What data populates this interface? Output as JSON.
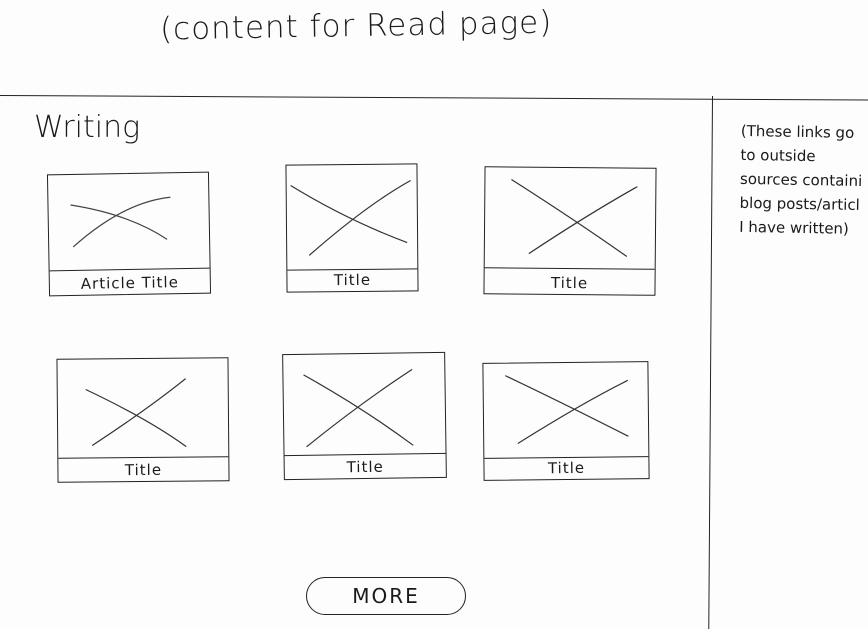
{
  "header": {
    "note": "(content for Read page)"
  },
  "main": {
    "section_title": "Writing",
    "articles": [
      {
        "title": "Article Title"
      },
      {
        "title": "Title"
      },
      {
        "title": "Title"
      },
      {
        "title": "Title"
      },
      {
        "title": "Title"
      },
      {
        "title": "Title"
      }
    ],
    "more_label": "MORE"
  },
  "sidebar": {
    "note": "(These links go\nto outside\nsources containi\nblog posts/articl\nI have written)"
  },
  "icons": {
    "thumbnail": "image-placeholder-icon"
  }
}
